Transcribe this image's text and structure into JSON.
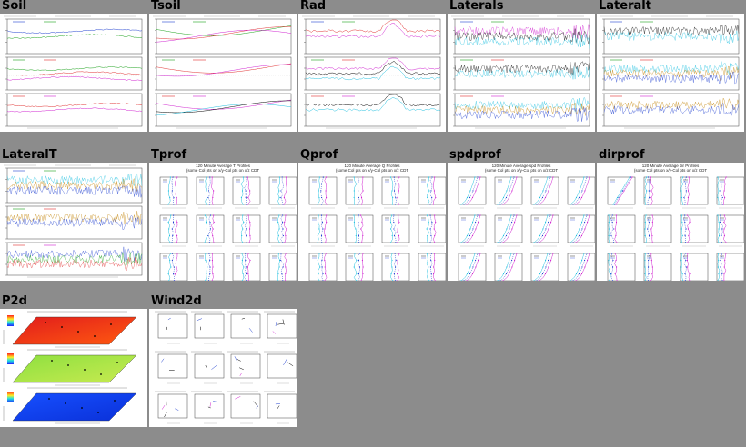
{
  "tiles": [
    {
      "title": "Soil",
      "kind": "ts3"
    },
    {
      "title": "Tsoil",
      "kind": "ts3"
    },
    {
      "title": "Rad",
      "kind": "ts3"
    },
    {
      "title": "Laterals",
      "kind": "ts3"
    },
    {
      "title": "Lateralt",
      "kind": "ts3"
    },
    {
      "title": "LateralT",
      "kind": "ts3"
    },
    {
      "title": "Tprof",
      "kind": "prof",
      "heading": "120 Minute Average T Profiles",
      "subheading": "(some Col pts on x/y-Col pts on x/z CDT"
    },
    {
      "title": "Qprof",
      "kind": "prof",
      "heading": "120 Minute Average Q Profiles",
      "subheading": "(some Col pts on x/y-Col pts on x/z CDT"
    },
    {
      "title": "spdprof",
      "kind": "prof",
      "heading": "120 Minute Average spd Profiles",
      "subheading": "(some Col pts on x/y-Col pts on x/z CDT"
    },
    {
      "title": "dirprof",
      "kind": "prof",
      "heading": "120 Minute Average dir Profiles",
      "subheading": "(some Col pts on x/y-Col pts on x/z CDT"
    },
    {
      "title": "P2d",
      "kind": "p2d"
    },
    {
      "title": "Wind2d",
      "kind": "wind"
    }
  ],
  "colors": {
    "page_bg": "#8c8c8c",
    "series": [
      "#1f3fd0",
      "#1aa11a",
      "#e03030",
      "#d020d0",
      "#000000",
      "#20c0e0",
      "#c08000"
    ],
    "p2d_fills": [
      "#e11c1c",
      "#8ee040",
      "#1750ff"
    ]
  }
}
